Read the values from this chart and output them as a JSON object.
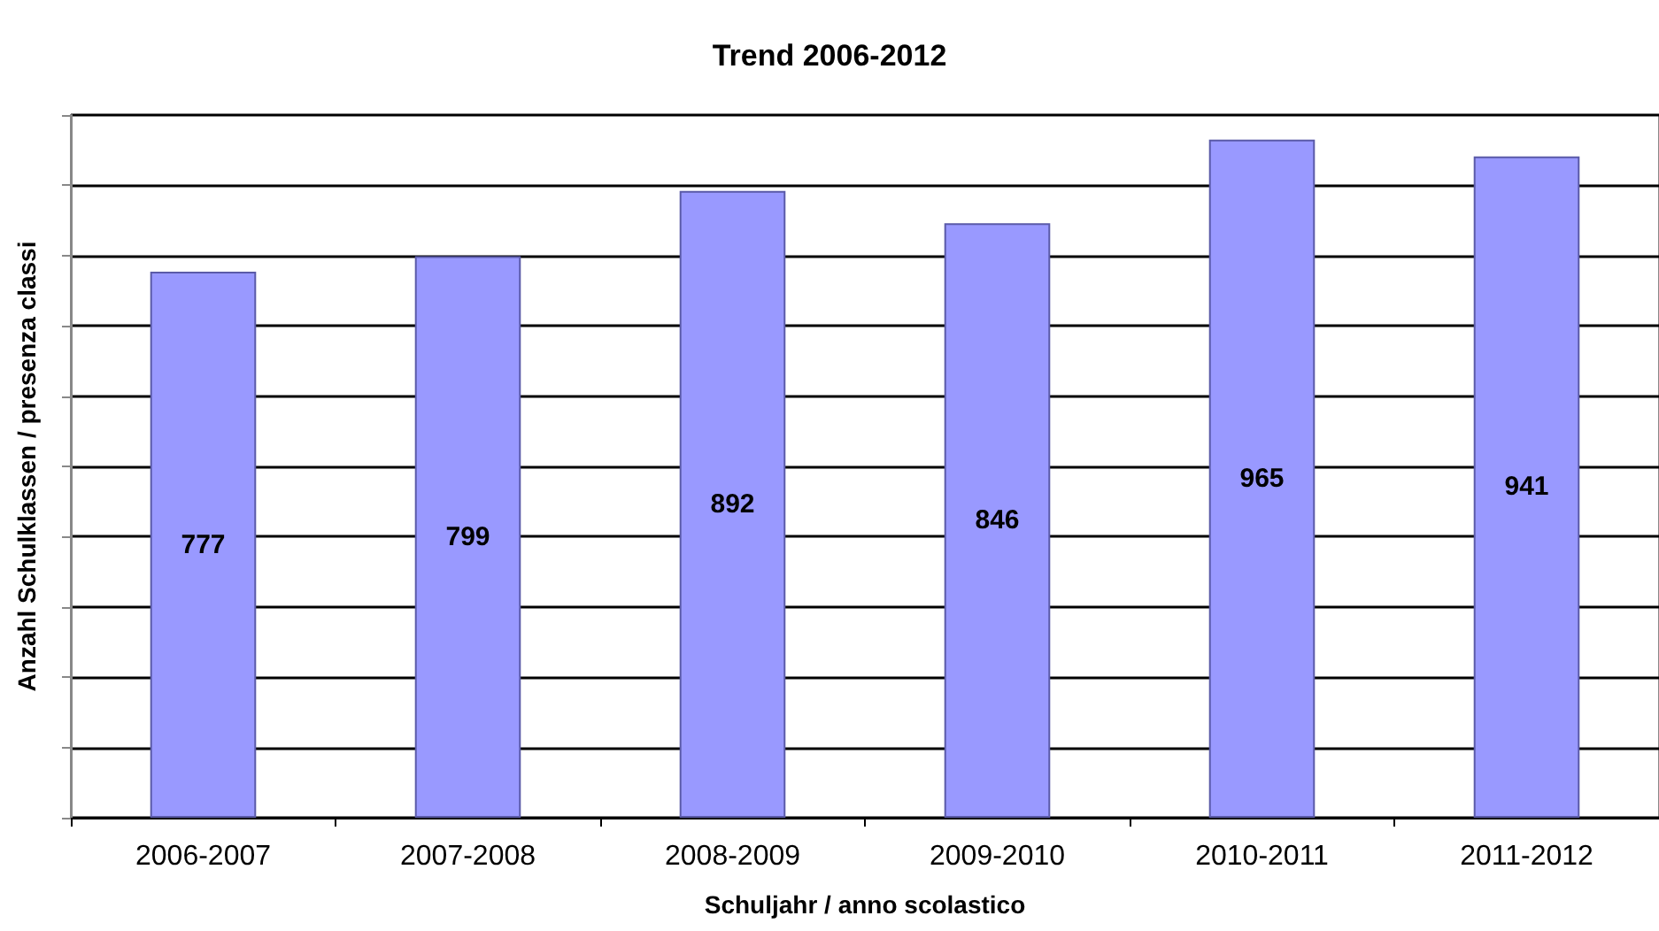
{
  "chart_data": {
    "type": "bar",
    "title": "Trend 2006-2012",
    "xlabel": "Schuljahr / anno scolastico",
    "ylabel": "Anzahl Schulklassen / presenza classi",
    "categories": [
      "2006-2007",
      "2007-2008",
      "2008-2009",
      "2009-2010",
      "2010-2011",
      "2011-2012"
    ],
    "values": [
      777,
      799,
      892,
      846,
      965,
      941
    ],
    "color": "#9999ff",
    "data_labels": true,
    "ylim": [
      0,
      1000
    ],
    "yticks": [
      {
        "value": 0,
        "label": null
      },
      {
        "value": 100,
        "label": null
      },
      {
        "value": 200,
        "label": null
      },
      {
        "value": 300,
        "label": null
      },
      {
        "value": 400,
        "label": null
      },
      {
        "value": 500,
        "label": null
      },
      {
        "value": 600,
        "label": null
      },
      {
        "value": 700,
        "label": null
      },
      {
        "value": 800,
        "label": null
      },
      {
        "value": 900,
        "label": null
      },
      {
        "value": 1000,
        "label": null
      }
    ],
    "tick_labels": "x",
    "grid": "y"
  }
}
